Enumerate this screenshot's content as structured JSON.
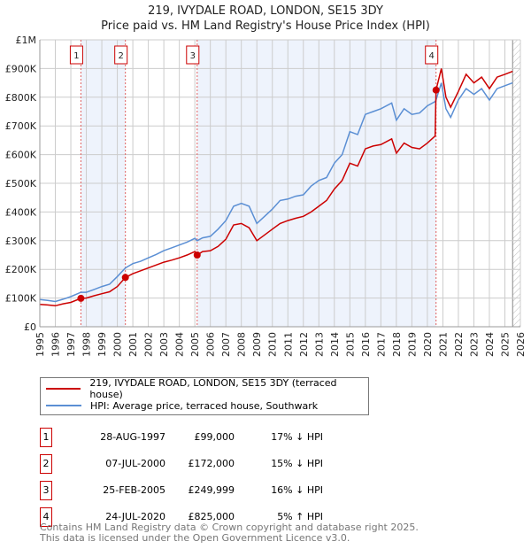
{
  "title": "219, IVYDALE ROAD, LONDON, SE15 3DY",
  "subtitle": "Price paid vs. HM Land Registry's House Price Index (HPI)",
  "chart_data": {
    "type": "line",
    "title": "219, IVYDALE ROAD, LONDON, SE15 3DY",
    "xlim": [
      1995,
      2026
    ],
    "ylim": [
      0,
      1000000
    ],
    "x_ticks": [
      "1995",
      "1996",
      "1997",
      "1998",
      "1999",
      "2000",
      "2001",
      "2002",
      "2003",
      "2004",
      "2005",
      "2006",
      "2007",
      "2008",
      "2009",
      "2010",
      "2011",
      "2012",
      "2013",
      "2014",
      "2015",
      "2016",
      "2017",
      "2018",
      "2019",
      "2020",
      "2021",
      "2022",
      "2023",
      "2024",
      "2025",
      "2026"
    ],
    "y_ticks": [
      {
        "v": 0,
        "label": "£0"
      },
      {
        "v": 100000,
        "label": "£100K"
      },
      {
        "v": 200000,
        "label": "£200K"
      },
      {
        "v": 300000,
        "label": "£300K"
      },
      {
        "v": 400000,
        "label": "£400K"
      },
      {
        "v": 500000,
        "label": "£500K"
      },
      {
        "v": 600000,
        "label": "£600K"
      },
      {
        "v": 700000,
        "label": "£700K"
      },
      {
        "v": 800000,
        "label": "£800K"
      },
      {
        "v": 900000,
        "label": "£900K"
      },
      {
        "v": 1000000,
        "label": "£1M"
      }
    ],
    "grid": true,
    "series": [
      {
        "name": "219, IVYDALE ROAD, LONDON, SE15 3DY (terraced house)",
        "color": "#cc0000",
        "x": [
          1995,
          1995.5,
          1996,
          1996.5,
          1997,
          1997.65,
          1998,
          1998.5,
          1999,
          1999.5,
          2000,
          2000.52,
          2001,
          2001.5,
          2002,
          2002.5,
          2003,
          2003.5,
          2004,
          2004.5,
          2005,
          2005.15,
          2005.5,
          2006,
          2006.5,
          2007,
          2007.5,
          2008,
          2008.5,
          2009,
          2009.5,
          2010,
          2010.5,
          2011,
          2011.5,
          2012,
          2012.5,
          2013,
          2013.5,
          2014,
          2014.5,
          2015,
          2015.5,
          2016,
          2016.5,
          2017,
          2017.7,
          2018,
          2018.5,
          2019,
          2019.5,
          2020,
          2020.5,
          2020.56,
          2020.9,
          2021.2,
          2021.5,
          2022,
          2022.5,
          2023,
          2023.5,
          2024,
          2024.5,
          2025,
          2025.5
        ],
        "y": [
          78000,
          76000,
          73000,
          80000,
          85000,
          99000,
          100000,
          108000,
          115000,
          122000,
          140000,
          172000,
          185000,
          195000,
          205000,
          215000,
          225000,
          232000,
          240000,
          250000,
          262000,
          250000,
          262000,
          265000,
          280000,
          305000,
          355000,
          360000,
          345000,
          300000,
          320000,
          340000,
          360000,
          370000,
          378000,
          385000,
          400000,
          420000,
          440000,
          480000,
          510000,
          570000,
          560000,
          620000,
          630000,
          635000,
          655000,
          605000,
          640000,
          625000,
          620000,
          640000,
          665000,
          825000,
          900000,
          800000,
          765000,
          820000,
          880000,
          850000,
          870000,
          830000,
          870000,
          880000,
          890000
        ]
      },
      {
        "name": "HPI: Average price, terraced house, Southwark",
        "color": "#5b8fd4",
        "x": [
          1995,
          1995.5,
          1996,
          1996.5,
          1997,
          1997.65,
          1998,
          1998.5,
          1999,
          1999.5,
          2000,
          2000.52,
          2001,
          2001.5,
          2002,
          2002.5,
          2003,
          2003.5,
          2004,
          2004.5,
          2005,
          2005.15,
          2005.5,
          2006,
          2006.5,
          2007,
          2007.5,
          2008,
          2008.5,
          2009,
          2009.5,
          2010,
          2010.5,
          2011,
          2011.5,
          2012,
          2012.5,
          2013,
          2013.5,
          2014,
          2014.5,
          2015,
          2015.5,
          2016,
          2016.5,
          2017,
          2017.7,
          2018,
          2018.5,
          2019,
          2019.5,
          2020,
          2020.5,
          2020.56,
          2020.9,
          2021.2,
          2021.5,
          2022,
          2022.5,
          2023,
          2023.5,
          2024,
          2024.5,
          2025,
          2025.5
        ],
        "y": [
          95000,
          92000,
          88000,
          96000,
          105000,
          120000,
          120000,
          130000,
          140000,
          148000,
          175000,
          205000,
          220000,
          228000,
          240000,
          252000,
          265000,
          275000,
          285000,
          295000,
          308000,
          300000,
          310000,
          315000,
          340000,
          370000,
          420000,
          430000,
          420000,
          360000,
          385000,
          410000,
          440000,
          445000,
          455000,
          460000,
          490000,
          510000,
          520000,
          570000,
          600000,
          680000,
          670000,
          740000,
          750000,
          760000,
          780000,
          720000,
          760000,
          740000,
          745000,
          770000,
          785000,
          790000,
          850000,
          760000,
          730000,
          790000,
          830000,
          810000,
          830000,
          790000,
          830000,
          840000,
          850000
        ]
      }
    ],
    "sales": [
      {
        "n": "1",
        "x": 1997.65,
        "date": "28-AUG-1997",
        "price": "£99,000",
        "value": 99000,
        "hpi": "17% ↓ HPI"
      },
      {
        "n": "2",
        "x": 2000.52,
        "date": "07-JUL-2000",
        "price": "£172,000",
        "value": 172000,
        "hpi": "15% ↓ HPI"
      },
      {
        "n": "3",
        "x": 2005.15,
        "date": "25-FEB-2005",
        "price": "£249,999",
        "value": 249999,
        "hpi": "16% ↓ HPI"
      },
      {
        "n": "4",
        "x": 2020.56,
        "date": "24-JUL-2020",
        "price": "£825,000",
        "value": 825000,
        "hpi": "5% ↑ HPI"
      }
    ],
    "forecast_from": 2025.5,
    "legend": "bottom"
  },
  "legend": {
    "red": "219, IVYDALE ROAD, LONDON, SE15 3DY (terraced house)",
    "blue": "HPI: Average price, terraced house, Southwark"
  },
  "footer": {
    "line1": "Contains HM Land Registry data © Crown copyright and database right 2025.",
    "line2": "This data is licensed under the Open Government Licence v3.0."
  }
}
